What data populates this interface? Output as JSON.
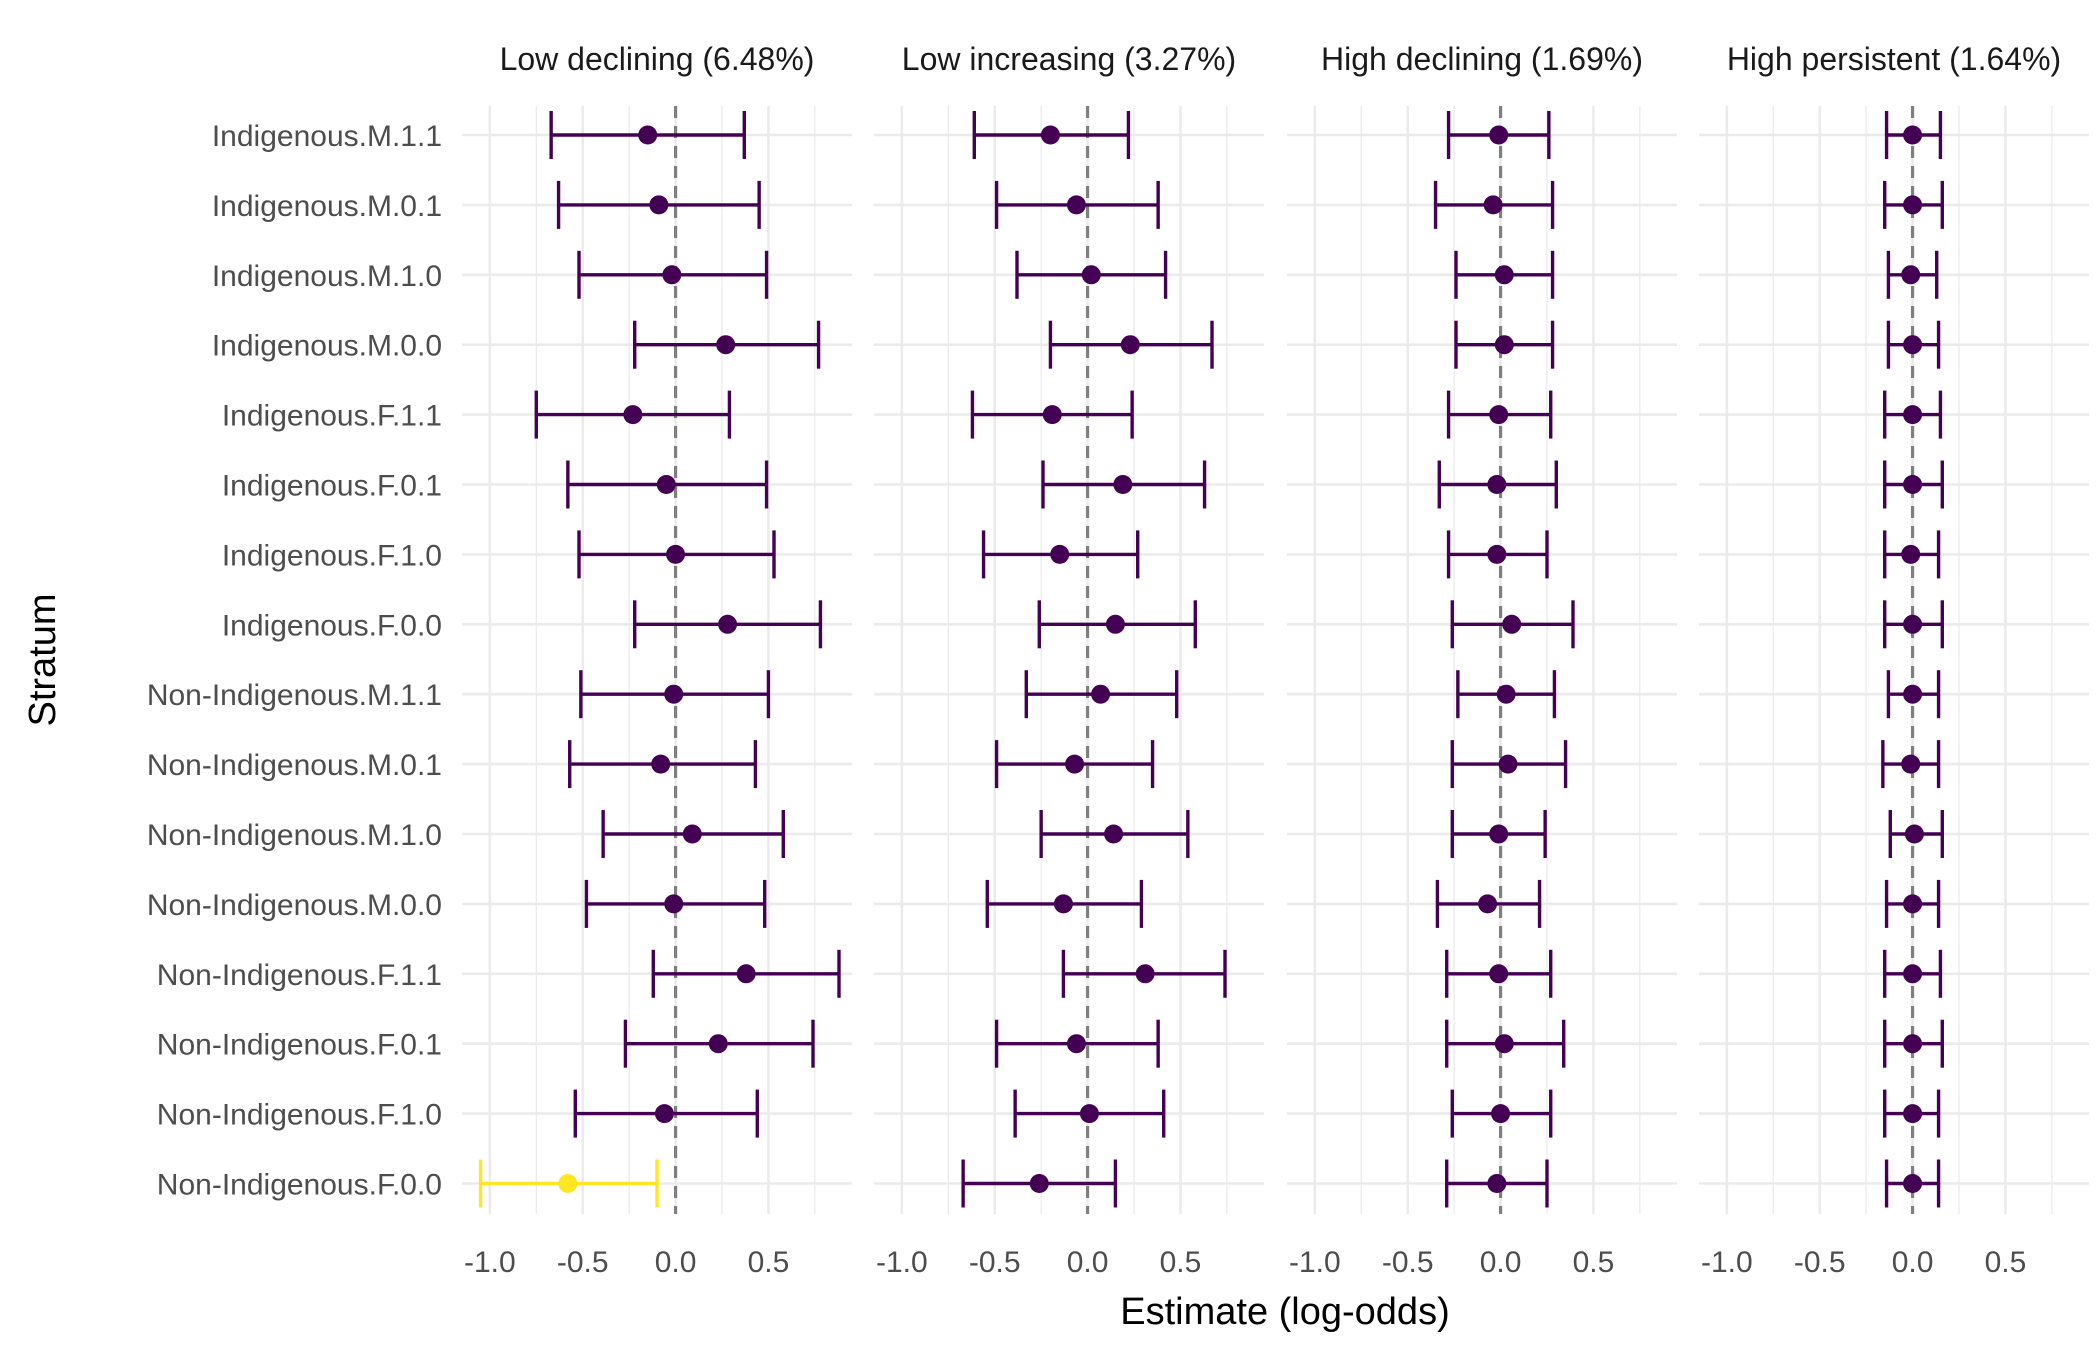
{
  "chart_data": {
    "type": "errorbar",
    "xlabel": "Estimate (log-odds)",
    "ylabel": "Stratum",
    "xlim": [
      -1.15,
      0.95
    ],
    "x_ticks": [
      -1.0,
      -0.5,
      0.0,
      0.5
    ],
    "x_tick_labels": [
      "-1.0",
      "-0.5",
      "0.0",
      "0.5"
    ],
    "reference_line": 0,
    "grid": true,
    "colors": {
      "default": "#440154",
      "highlight": "#FDE725",
      "reference": "#7F7F7F",
      "grid": "#EBEBEB"
    },
    "strata": [
      "Indigenous.M.1.1",
      "Indigenous.M.0.1",
      "Indigenous.M.1.0",
      "Indigenous.M.0.0",
      "Indigenous.F.1.1",
      "Indigenous.F.0.1",
      "Indigenous.F.1.0",
      "Indigenous.F.0.0",
      "Non-Indigenous.M.1.1",
      "Non-Indigenous.M.0.1",
      "Non-Indigenous.M.1.0",
      "Non-Indigenous.M.0.0",
      "Non-Indigenous.F.1.1",
      "Non-Indigenous.F.0.1",
      "Non-Indigenous.F.1.0",
      "Non-Indigenous.F.0.0"
    ],
    "panels": [
      {
        "title": "Low declining (6.48%)",
        "estimate": [
          -0.15,
          -0.09,
          -0.02,
          0.27,
          -0.23,
          -0.05,
          0.0,
          0.28,
          -0.01,
          -0.08,
          0.09,
          -0.01,
          0.38,
          0.23,
          -0.06,
          -0.58
        ],
        "lower": [
          -0.67,
          -0.63,
          -0.52,
          -0.22,
          -0.75,
          -0.58,
          -0.52,
          -0.22,
          -0.51,
          -0.57,
          -0.39,
          -0.48,
          -0.12,
          -0.27,
          -0.54,
          -1.05
        ],
        "upper": [
          0.37,
          0.45,
          0.49,
          0.77,
          0.29,
          0.49,
          0.53,
          0.78,
          0.5,
          0.43,
          0.58,
          0.48,
          0.88,
          0.74,
          0.44,
          -0.1
        ],
        "highlight": [
          false,
          false,
          false,
          false,
          false,
          false,
          false,
          false,
          false,
          false,
          false,
          false,
          false,
          false,
          false,
          true
        ]
      },
      {
        "title": "Low increasing (3.27%)",
        "estimate": [
          -0.2,
          -0.06,
          0.02,
          0.23,
          -0.19,
          0.19,
          -0.15,
          0.15,
          0.07,
          -0.07,
          0.14,
          -0.13,
          0.31,
          -0.06,
          0.01,
          -0.26
        ],
        "lower": [
          -0.61,
          -0.49,
          -0.38,
          -0.2,
          -0.62,
          -0.24,
          -0.56,
          -0.26,
          -0.33,
          -0.49,
          -0.25,
          -0.54,
          -0.13,
          -0.49,
          -0.39,
          -0.67
        ],
        "upper": [
          0.22,
          0.38,
          0.42,
          0.67,
          0.24,
          0.63,
          0.27,
          0.58,
          0.48,
          0.35,
          0.54,
          0.29,
          0.74,
          0.38,
          0.41,
          0.15
        ]
      },
      {
        "title": "High declining (1.69%)",
        "estimate": [
          -0.01,
          -0.04,
          0.02,
          0.02,
          -0.01,
          -0.02,
          -0.02,
          0.06,
          0.03,
          0.04,
          -0.01,
          -0.07,
          -0.01,
          0.02,
          0.0,
          -0.02
        ],
        "lower": [
          -0.28,
          -0.35,
          -0.24,
          -0.24,
          -0.28,
          -0.33,
          -0.28,
          -0.26,
          -0.23,
          -0.26,
          -0.26,
          -0.34,
          -0.29,
          -0.29,
          -0.26,
          -0.29
        ],
        "upper": [
          0.26,
          0.28,
          0.28,
          0.28,
          0.27,
          0.3,
          0.25,
          0.39,
          0.29,
          0.35,
          0.24,
          0.21,
          0.27,
          0.34,
          0.27,
          0.25
        ]
      },
      {
        "title": "High persistent (1.64%)",
        "estimate": [
          0.0,
          0.0,
          -0.01,
          0.0,
          0.0,
          0.0,
          -0.01,
          0.0,
          0.0,
          -0.01,
          0.01,
          0.0,
          0.0,
          0.0,
          0.0,
          0.0
        ],
        "lower": [
          -0.14,
          -0.15,
          -0.13,
          -0.13,
          -0.15,
          -0.15,
          -0.15,
          -0.15,
          -0.13,
          -0.16,
          -0.12,
          -0.14,
          -0.15,
          -0.15,
          -0.15,
          -0.14
        ],
        "upper": [
          0.15,
          0.16,
          0.13,
          0.14,
          0.15,
          0.16,
          0.14,
          0.16,
          0.14,
          0.14,
          0.16,
          0.14,
          0.15,
          0.16,
          0.14,
          0.14
        ]
      }
    ]
  }
}
